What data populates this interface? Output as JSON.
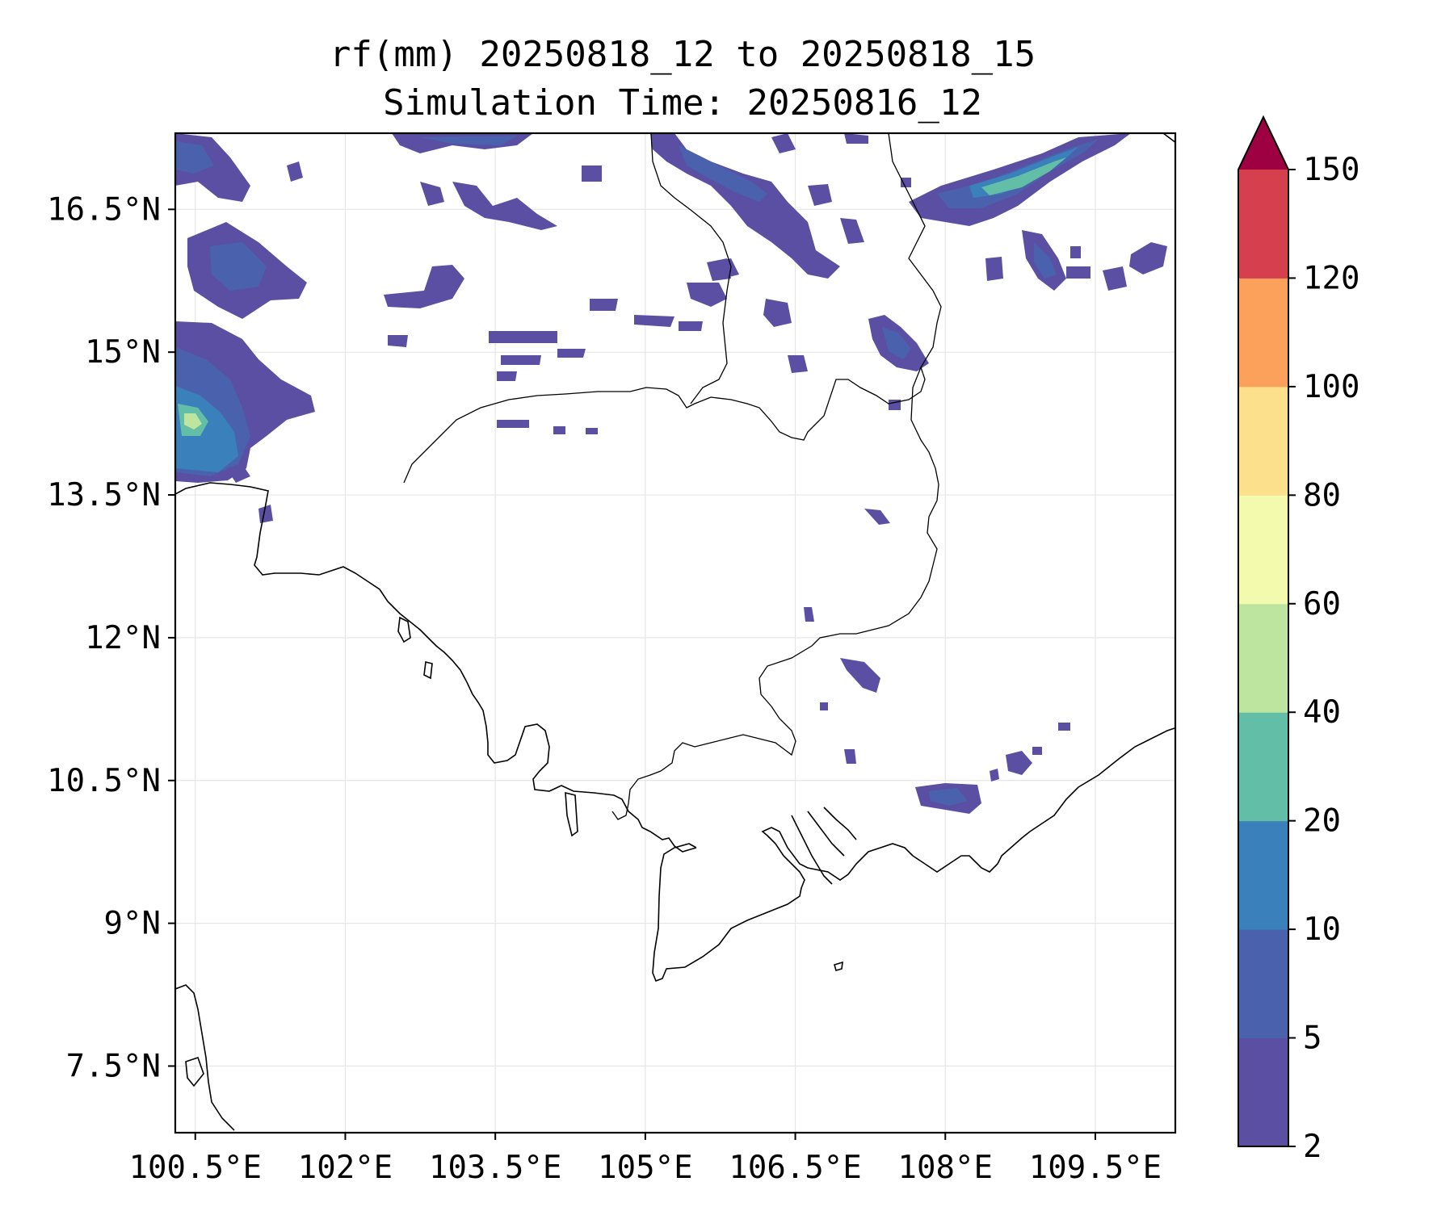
{
  "title": {
    "line1": "rf(mm) 20250818_12 to 20250818_15",
    "line2": "Simulation Time: 20250816_12"
  },
  "map": {
    "lon_range": [
      100.3,
      110.3
    ],
    "lat_range": [
      6.8,
      17.3
    ],
    "x_ticks": [
      "100.5°E",
      "102°E",
      "103.5°E",
      "105°E",
      "106.5°E",
      "108°E",
      "109.5°E"
    ],
    "y_ticks": [
      "16.5°N",
      "15°N",
      "13.5°N",
      "12°N",
      "10.5°N",
      "9°N",
      "7.5°N"
    ],
    "grid": true
  },
  "colorbar": {
    "labels": [
      "2",
      "5",
      "10",
      "20",
      "40",
      "60",
      "80",
      "100",
      "120",
      "150"
    ],
    "colors": [
      "#5a4fa2",
      "#4a62ae",
      "#3a80ba",
      "#62bea6",
      "#bee5a0",
      "#f3faad",
      "#fce08b",
      "#fba15b",
      "#d6404e",
      "#9e0142"
    ],
    "extend": "max"
  }
}
